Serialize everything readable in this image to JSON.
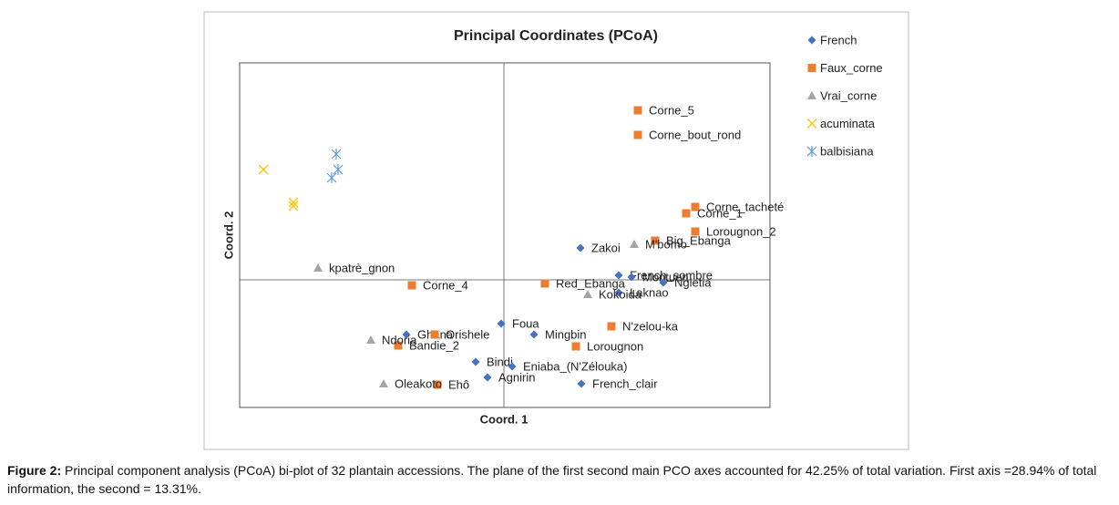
{
  "chart_data": {
    "type": "scatter",
    "title": "Principal Coordinates (PCoA)",
    "xlabel": "Coord. 1",
    "ylabel": "Coord. 2",
    "xlim": [
      -2.9,
      2.92
    ],
    "ylim": [
      -1.4,
      2.38
    ],
    "series": [
      {
        "name": "French",
        "color": "#4472c4",
        "marker": "diamond",
        "x": [
          0.84,
          1.26,
          1.4,
          1.75,
          1.26,
          -0.03,
          0.33,
          -1.07,
          -0.31,
          0.09,
          -0.18,
          0.85
        ],
        "y": [
          0.35,
          0.05,
          0.03,
          -0.03,
          -0.14,
          -0.48,
          -0.6,
          -0.6,
          -0.9,
          -0.95,
          -1.07,
          -1.14
        ],
        "labels": [
          "Zakoi",
          "French_sombre",
          "Montuen",
          "Ngletia",
          "Laknao",
          "Foua",
          "Mingbin",
          "Ghana",
          "Bindi",
          "Eniaba_(N'Zélouka)",
          "Agnirin",
          "French_clair"
        ]
      },
      {
        "name": "Faux_corne",
        "color": "#ed7d31",
        "marker": "square",
        "x": [
          1.47,
          1.47,
          2.1,
          2.0,
          2.1,
          1.66,
          -1.01,
          0.45,
          1.18,
          0.79,
          -1.16,
          -0.76,
          -0.73
        ],
        "y": [
          1.86,
          1.59,
          0.8,
          0.73,
          0.53,
          0.43,
          -0.06,
          -0.04,
          -0.51,
          -0.73,
          -0.72,
          -0.6,
          -1.15
        ],
        "labels": [
          "Corne_5",
          "Corne_bout_rond",
          "Corne_tacheté",
          "Corne_1",
          "Lorougnon_2",
          "Big_Ebanga",
          "Corne_4",
          "Red_Ebanga",
          "N'zelou-ka",
          "Lorougnon",
          "Bandie_2",
          "Orishele",
          "Ehô"
        ]
      },
      {
        "name": "Vrai_corne",
        "color": "#a5a5a5",
        "marker": "triangle",
        "x": [
          -2.04,
          1.43,
          0.92,
          -1.46,
          -1.32
        ],
        "y": [
          0.13,
          0.39,
          -0.16,
          -0.66,
          -1.14
        ],
        "labels": [
          "kpatrè_gnon",
          "M'bomo",
          "Kokoida",
          "Ndoria",
          "Oleakoto"
        ]
      },
      {
        "name": "acuminata",
        "color": "#ffc000",
        "marker": "x",
        "x": [
          -2.64,
          -2.31,
          -2.31
        ],
        "y": [
          1.21,
          0.85,
          0.81
        ]
      },
      {
        "name": "balbisiana",
        "color": "#5b9bd5",
        "marker": "asterisk",
        "x": [
          -1.84,
          -1.82,
          -1.89
        ],
        "y": [
          1.38,
          1.21,
          1.12
        ]
      }
    ]
  },
  "caption": {
    "label": "Figure 2:",
    "text": "Principal component analysis (PCoA) bi-plot of 32 plantain accessions. The plane of the first second main PCO axes accounted for 42.25% of total variation. First axis =28.94% of total information, the second = 13.31%."
  }
}
